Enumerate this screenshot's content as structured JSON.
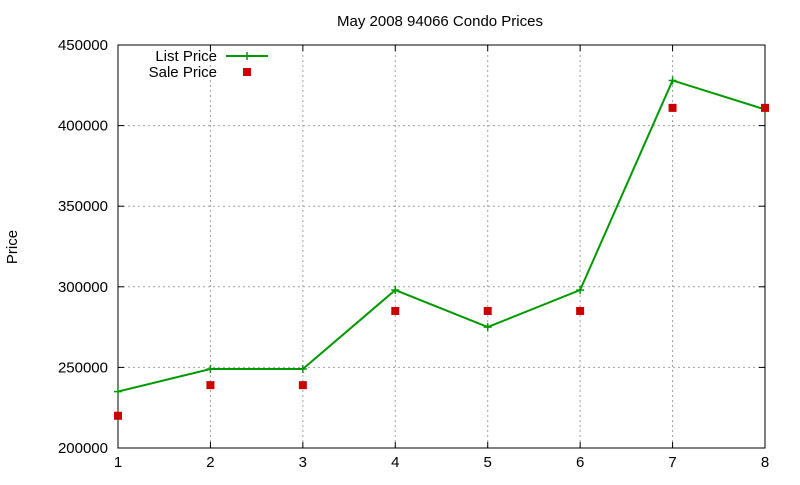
{
  "chart_data": {
    "type": "line",
    "title": "May 2008 94066 Condo Prices",
    "xlabel": "",
    "ylabel": "Price",
    "x": [
      1,
      2,
      3,
      4,
      5,
      6,
      7,
      8
    ],
    "xlim": [
      1,
      8
    ],
    "ylim": [
      200000,
      450000
    ],
    "x_ticks": [
      1,
      2,
      3,
      4,
      5,
      6,
      7,
      8
    ],
    "y_ticks": [
      200000,
      250000,
      300000,
      350000,
      400000,
      450000
    ],
    "grid": true,
    "legend_position": "top-left",
    "series": [
      {
        "name": "List Price",
        "type": "line",
        "marker": "plus",
        "color": "#009900",
        "values": [
          235000,
          249000,
          249000,
          298000,
          275000,
          298000,
          428000,
          410000
        ]
      },
      {
        "name": "Sale Price",
        "type": "scatter",
        "marker": "square",
        "color": "#cc0000",
        "values": [
          220000,
          239000,
          239000,
          285000,
          285000,
          285000,
          411000,
          411000
        ]
      }
    ]
  }
}
